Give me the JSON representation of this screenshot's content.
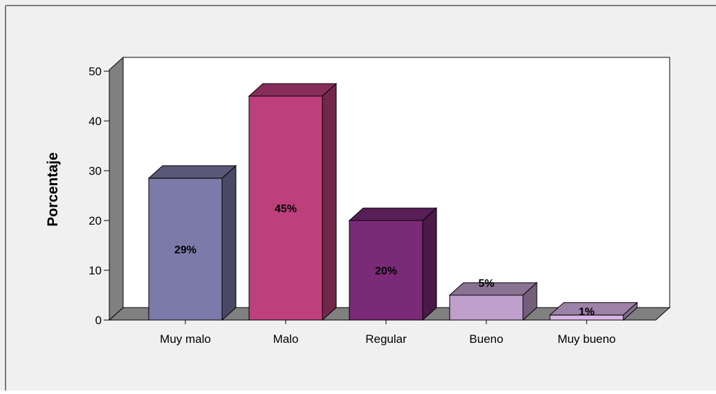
{
  "chart_data": {
    "type": "bar",
    "style": "3d",
    "title": "",
    "xlabel": "",
    "ylabel": "Porcentaje",
    "ylim": [
      0,
      50
    ],
    "yticks": [
      0,
      10,
      20,
      30,
      40,
      50
    ],
    "categories": [
      "Muy malo",
      "Malo",
      "Regular",
      "Bueno",
      "Muy bueno"
    ],
    "values": [
      28.5,
      45,
      20,
      5,
      1
    ],
    "data_labels": [
      "29%",
      "45%",
      "20%",
      "5%",
      "1%"
    ],
    "colors": [
      "#7b7aa8",
      "#bd3f7c",
      "#7a2a77",
      "#bf9fcc",
      "#d8b5e6"
    ],
    "grid": false,
    "legend": "none"
  },
  "colors": {
    "background": "#f0f0f0",
    "plot_back": "#ffffff",
    "wall_side": "#808080",
    "floor": "#808080",
    "frame": "#7a7a7a"
  }
}
